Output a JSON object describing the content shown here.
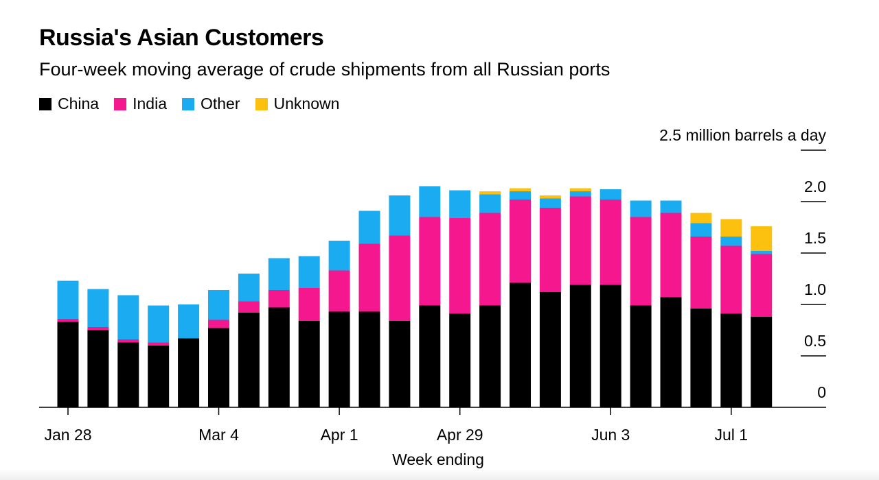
{
  "chart_data": {
    "type": "bar",
    "stacked": true,
    "title": "Russia's Asian Customers",
    "subtitle": "Four-week moving average of crude shipments from all Russian ports",
    "xlabel": "Week ending",
    "ylabel": "million barrels a day",
    "ylim": [
      0,
      2.5
    ],
    "yticks": [
      0,
      0.5,
      1.0,
      1.5,
      2.0,
      2.5
    ],
    "ytick_labels": [
      "0",
      "0.5",
      "1.0",
      "1.5",
      "2.0",
      "2.5 million barrels a day"
    ],
    "xtick_labels": [
      {
        "label": "Jan 28",
        "index": 0
      },
      {
        "label": "Mar 4",
        "index": 5
      },
      {
        "label": "Apr 1",
        "index": 9
      },
      {
        "label": "Apr 29",
        "index": 13
      },
      {
        "label": "Jun 3",
        "index": 18
      },
      {
        "label": "Jul 1",
        "index": 22
      }
    ],
    "legend_position": "top-left",
    "series": [
      {
        "name": "China",
        "color": "#000000",
        "values": [
          0.83,
          0.75,
          0.63,
          0.6,
          0.67,
          0.77,
          0.92,
          0.97,
          0.84,
          0.93,
          0.93,
          0.84,
          0.99,
          0.91,
          0.99,
          1.21,
          1.12,
          1.19,
          1.19,
          0.99,
          1.07,
          0.96,
          0.91,
          0.88
        ]
      },
      {
        "name": "India",
        "color": "#f5178e",
        "values": [
          0.03,
          0.03,
          0.03,
          0.03,
          0.0,
          0.08,
          0.11,
          0.17,
          0.32,
          0.4,
          0.66,
          0.83,
          0.86,
          0.93,
          0.9,
          0.81,
          0.82,
          0.86,
          0.83,
          0.86,
          0.82,
          0.7,
          0.66,
          0.61
        ]
      },
      {
        "name": "Other",
        "color": "#1aabf0",
        "values": [
          0.37,
          0.37,
          0.43,
          0.36,
          0.33,
          0.29,
          0.27,
          0.31,
          0.31,
          0.29,
          0.32,
          0.39,
          0.3,
          0.27,
          0.18,
          0.08,
          0.09,
          0.05,
          0.1,
          0.16,
          0.12,
          0.13,
          0.09,
          0.03
        ]
      },
      {
        "name": "Unknown",
        "color": "#fcc10e",
        "values": [
          0,
          0,
          0,
          0,
          0,
          0,
          0,
          0,
          0,
          0,
          0,
          0,
          0,
          0,
          0.03,
          0.03,
          0.03,
          0.03,
          0,
          0,
          0,
          0.1,
          0.17,
          0.24
        ]
      }
    ]
  }
}
